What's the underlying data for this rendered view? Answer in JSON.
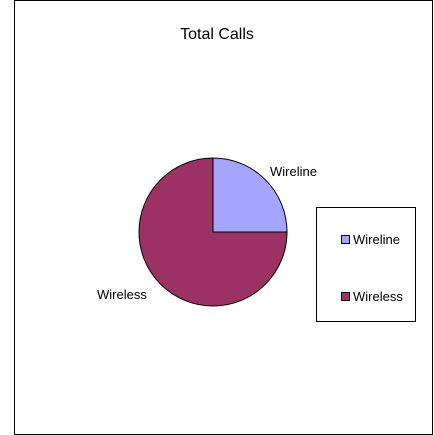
{
  "chart_data": {
    "type": "pie",
    "title": "Total Calls",
    "labels": [
      "Wireline",
      "Wireless"
    ],
    "values": [
      25,
      75
    ],
    "colors": [
      "#a5a5ff",
      "#9b3263"
    ],
    "legend_position": "right",
    "data_labels": [
      "Wireline",
      "Wireless"
    ],
    "legend": [
      "Wireline",
      "Wireless"
    ]
  }
}
